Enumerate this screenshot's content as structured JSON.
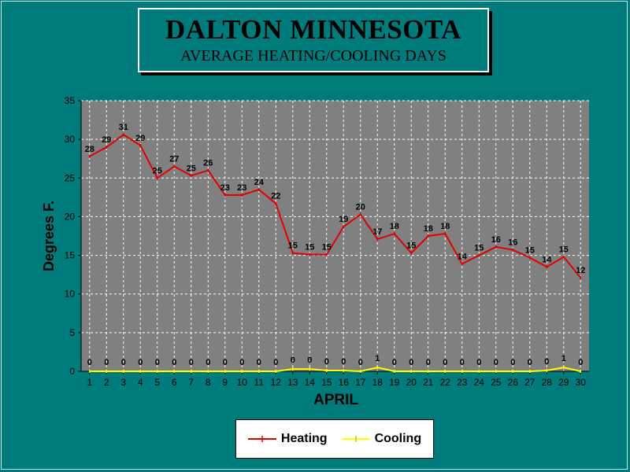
{
  "title": {
    "main": "DALTON MINNESOTA",
    "subtitle": "AVERAGE HEATING/COOLING DAYS"
  },
  "colors": {
    "background": "#007b7b",
    "plot_area": "#808080",
    "heating": "#e00000",
    "cooling": "#ffff00"
  },
  "chart_data": {
    "type": "line",
    "xlabel": "APRIL",
    "ylabel": "Degrees F.",
    "ylim": [
      0,
      35
    ],
    "yticks": [
      0,
      5,
      10,
      15,
      20,
      25,
      30,
      35
    ],
    "grid": true,
    "legend_position": "bottom",
    "categories": [
      "1",
      "2",
      "3",
      "4",
      "5",
      "6",
      "7",
      "8",
      "9",
      "10",
      "11",
      "12",
      "13",
      "14",
      "15",
      "16",
      "17",
      "18",
      "19",
      "20",
      "21",
      "22",
      "23",
      "24",
      "25",
      "26",
      "27",
      "28",
      "29",
      "30"
    ],
    "series": [
      {
        "name": "Heating",
        "values": [
          27.8,
          29.0,
          30.6,
          29.2,
          25.0,
          26.5,
          25.3,
          26.0,
          22.8,
          22.8,
          23.5,
          21.7,
          15.3,
          15.1,
          15.1,
          18.7,
          20.3,
          17.1,
          17.8,
          15.3,
          17.5,
          17.8,
          13.9,
          15.0,
          16.1,
          15.7,
          14.7,
          13.5,
          14.8,
          12.1
        ],
        "labels": [
          "28",
          "29",
          "31",
          "29",
          "25",
          "27",
          "25",
          "26",
          "23",
          "23",
          "24",
          "22",
          "15",
          "15",
          "15",
          "19",
          "20",
          "17",
          "18",
          "15",
          "18",
          "18",
          "14",
          "15",
          "16",
          "16",
          "15",
          "14",
          "15",
          "12"
        ]
      },
      {
        "name": "Cooling",
        "values": [
          0,
          0,
          0,
          0,
          0,
          0,
          0,
          0,
          0,
          0,
          0,
          0,
          0.3,
          0.3,
          0.1,
          0.1,
          0,
          0.5,
          0,
          0,
          0,
          0,
          0,
          0,
          0,
          0,
          0,
          0.1,
          0.5,
          0
        ],
        "labels": [
          "0",
          "0",
          "0",
          "0",
          "0",
          "0",
          "0",
          "0",
          "0",
          "0",
          "0",
          "0",
          "0",
          "0",
          "0",
          "0",
          "0",
          "1",
          "0",
          "0",
          "0",
          "0",
          "0",
          "0",
          "0",
          "0",
          "0",
          "0",
          "1",
          "0"
        ]
      }
    ]
  }
}
